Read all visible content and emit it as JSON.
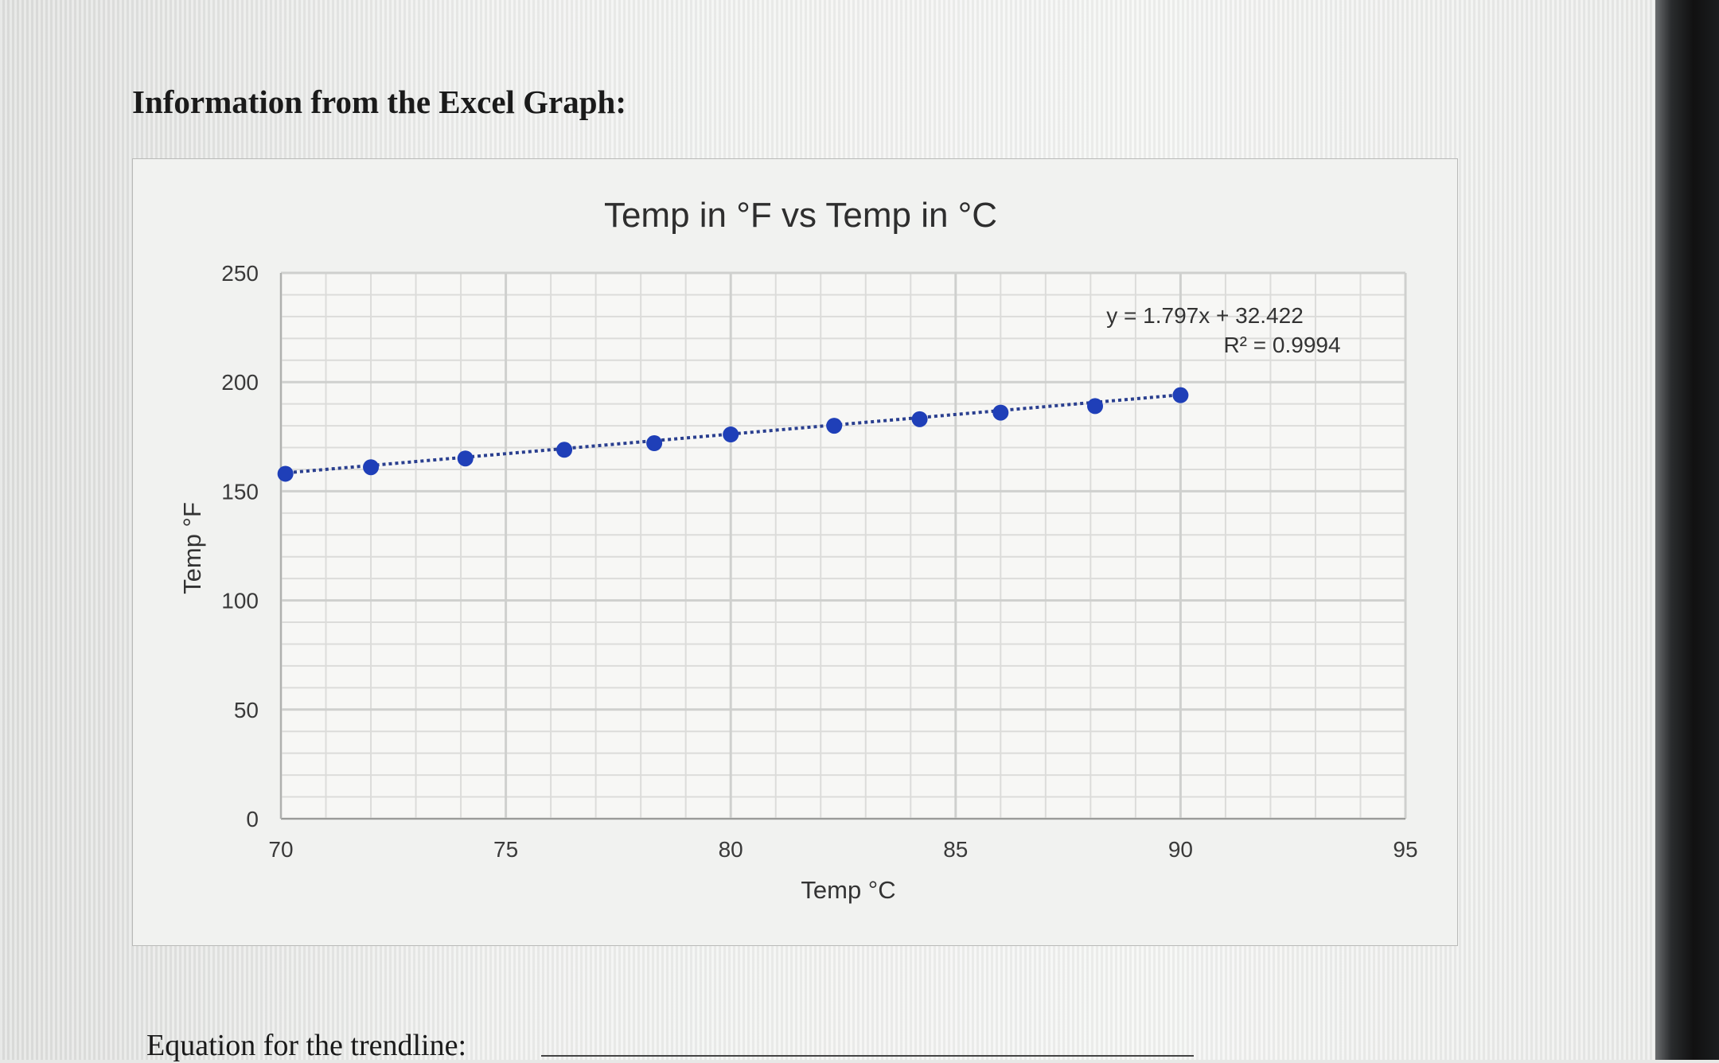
{
  "page": {
    "heading": "Information from the Excel Graph:",
    "footer_prompt": "Equation for the trendline:"
  },
  "colors": {
    "marker": "#1f3fb8",
    "trendline": "#2a3f8f",
    "grid_major": "#cfd0ce",
    "grid_minor": "#dcdcda",
    "text": "#3a3a3a"
  },
  "chart_data": {
    "type": "scatter",
    "title": "Temp in °F  vs Temp in °C",
    "xlabel": "Temp °C",
    "ylabel": "Temp °F",
    "xlim": [
      70,
      95
    ],
    "ylim": [
      0,
      250
    ],
    "x_ticks": [
      70,
      75,
      80,
      85,
      90,
      95
    ],
    "y_ticks": [
      0,
      50,
      100,
      150,
      200,
      250
    ],
    "grid": true,
    "series": [
      {
        "x": [
          70.1,
          72,
          74.1,
          76.3,
          78.3,
          80,
          82.3,
          84.2,
          86,
          88.1,
          90
        ],
        "y": [
          158,
          161,
          165,
          169,
          172,
          176,
          180,
          183,
          186,
          189,
          194
        ]
      }
    ],
    "trendline": {
      "style": "dotted",
      "slope": 1.797,
      "intercept": 32.422,
      "x_range": [
        70,
        90
      ]
    },
    "annotations": {
      "equation": "y = 1.797x + 32.422",
      "r_squared": "R² = 0.9994"
    }
  }
}
